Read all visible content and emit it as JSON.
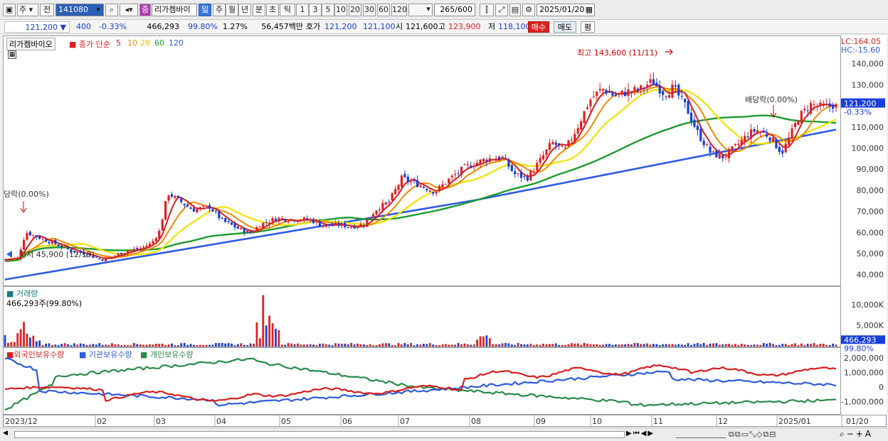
{
  "toolbar": {
    "period_code": "주",
    "prev_label": "전",
    "stock_code": "141080",
    "stock_name": "리가켐바이",
    "stock_type_badge": "중",
    "period_buttons": [
      "일",
      "주",
      "월",
      "년",
      "분",
      "초",
      "틱"
    ],
    "interval_buttons": [
      "1",
      "3",
      "5",
      "10",
      "20",
      "30",
      "60",
      "120"
    ],
    "count_value": "265",
    "count_total": "/600",
    "date_value": "2025/01/20"
  },
  "infobar": {
    "price": "121,200",
    "change": "400",
    "change_pct": "-0.33%",
    "volume": "466,293",
    "volume_ratio": "99.80%",
    "turnover": "1.27%",
    "amount": "56,457백만",
    "ask_label": "호가",
    "ask": "121,200",
    "bid": "121,100",
    "open_label": "시",
    "open": "121,600",
    "high_label": "고",
    "high": "123,900",
    "low_label": "저",
    "low": "118,100",
    "buy_label": "매수",
    "sell_label": "매도",
    "eval_label": "평"
  },
  "price_panel": {
    "stock_name": "리가켐바이오",
    "ma_label": "종가 단순",
    "ma_periods": [
      "5",
      "10",
      "20",
      "60",
      "120"
    ],
    "lc": "LC:164.05",
    "hc": "HC:-15.60",
    "y_ticks": [
      "140,000",
      "130,000",
      "120,000",
      "110,000",
      "100,000",
      "90,000",
      "80,000",
      "70,000",
      "60,000",
      "50,000",
      "40,000"
    ],
    "current_price_tag": "121,200",
    "current_change_tag": "-0.33%",
    "annotation_high": "최고 143,600 (11/11)",
    "annotation_low": "최저 45,900 (12/19)",
    "annotation_div1": "당락(0.00%)",
    "annotation_div2": "배당락(0.00%)"
  },
  "volume_panel": {
    "title": "거래량",
    "value_label": "466,293주(99.80%)",
    "y_ticks": [
      "10,000K",
      "5,000K"
    ],
    "current_tag": "466,293",
    "current_ratio": "99.80%"
  },
  "holdings_panel": {
    "series": [
      "외국인보유수량",
      "기관보유수량",
      "개인보유수량"
    ],
    "y_ticks": [
      "2,000,000",
      "1,000,000",
      "0",
      "-1,000,000"
    ]
  },
  "x_axis": [
    "2023/12",
    "02",
    "03",
    "04",
    "05",
    "06",
    "07",
    "08",
    "09",
    "10",
    "11",
    "12",
    "2025/01"
  ],
  "x_axis_right": "01/20",
  "colors": {
    "up": "#e02020",
    "down": "#1a3fd8",
    "ma5": "#d81e1e",
    "ma10": "#f08a00",
    "ma20": "#f2e200",
    "ma60": "#1e9a30",
    "ma120": "#2d5be0",
    "foreign": "#d81e1e",
    "inst": "#2d5be0",
    "indiv": "#2a8a4a"
  }
}
